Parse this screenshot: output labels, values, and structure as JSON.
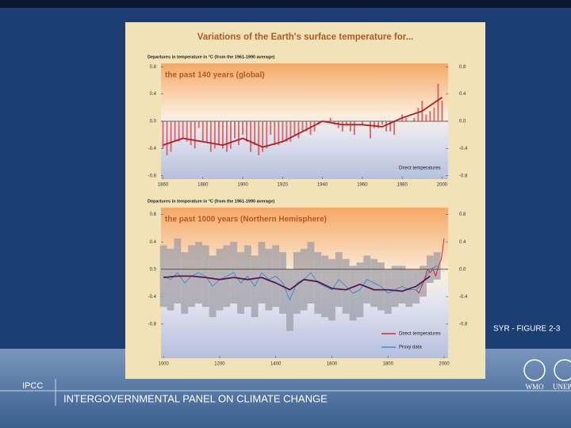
{
  "slide": {
    "caption": "SYR - FIGURE 2-3",
    "org_short": "IPCC",
    "org_full": "INTERGOVERNMENTAL PANEL ON CLIMATE CHANGE",
    "logos": [
      "WMO",
      "UNEP"
    ]
  },
  "figure_title": "Variations of the Earth's surface temperature for...",
  "chart_data": [
    {
      "type": "bar",
      "subtitle": "the past 140 years (global)",
      "y_label": "Departures in temperature in °C (from the 1961-1990 average)",
      "x": [
        1860,
        1862,
        1864,
        1866,
        1868,
        1870,
        1872,
        1874,
        1876,
        1878,
        1880,
        1882,
        1884,
        1886,
        1888,
        1890,
        1892,
        1894,
        1896,
        1898,
        1900,
        1902,
        1904,
        1906,
        1908,
        1910,
        1912,
        1914,
        1916,
        1918,
        1920,
        1922,
        1924,
        1926,
        1928,
        1930,
        1932,
        1934,
        1936,
        1938,
        1940,
        1942,
        1944,
        1946,
        1948,
        1950,
        1952,
        1954,
        1956,
        1958,
        1960,
        1962,
        1964,
        1966,
        1968,
        1970,
        1972,
        1974,
        1976,
        1978,
        1980,
        1982,
        1984,
        1986,
        1988,
        1990,
        1992,
        1994,
        1996,
        1998,
        2000
      ],
      "series": [
        {
          "name": "Direct temperatures",
          "color": "#d8504a",
          "values": [
            -0.4,
            -0.5,
            -0.45,
            -0.3,
            -0.3,
            -0.25,
            -0.3,
            -0.35,
            -0.4,
            -0.1,
            -0.3,
            -0.3,
            -0.45,
            -0.4,
            -0.35,
            -0.4,
            -0.45,
            -0.4,
            -0.25,
            -0.35,
            -0.2,
            -0.3,
            -0.45,
            -0.35,
            -0.5,
            -0.45,
            -0.4,
            -0.2,
            -0.35,
            -0.35,
            -0.3,
            -0.3,
            -0.3,
            -0.2,
            -0.25,
            -0.15,
            -0.15,
            -0.2,
            -0.15,
            -0.05,
            0,
            0,
            0.05,
            -0.05,
            -0.1,
            -0.15,
            -0.05,
            -0.15,
            -0.2,
            0,
            -0.05,
            0,
            -0.25,
            -0.1,
            -0.1,
            -0.05,
            -0.15,
            -0.15,
            -0.2,
            0,
            0.1,
            0.05,
            0,
            0.05,
            0.2,
            0.3,
            0.1,
            0.15,
            0.2,
            0.55,
            0.3
          ]
        }
      ],
      "smoothed": {
        "color": "#b02020",
        "x": [
          1860,
          1870,
          1880,
          1890,
          1900,
          1910,
          1920,
          1930,
          1940,
          1950,
          1960,
          1970,
          1980,
          1990,
          2000
        ],
        "values": [
          -0.35,
          -0.25,
          -0.3,
          -0.35,
          -0.25,
          -0.38,
          -0.3,
          -0.15,
          0,
          -0.05,
          -0.05,
          -0.08,
          0.05,
          0.15,
          0.35
        ]
      },
      "xlim": [
        1859,
        2003
      ],
      "xticks": [
        1860,
        1880,
        1900,
        1920,
        1940,
        1960,
        1980,
        2000
      ],
      "ylim": [
        -0.85,
        0.85
      ],
      "yticks": [
        0.8,
        0.4,
        {
          "value": 0,
          "label": "0.0"
        },
        -0.4,
        -0.8
      ],
      "legend": "lower right"
    },
    {
      "type": "line",
      "subtitle": "the past 1000 years (Northern Hemisphere)",
      "y_label": "Departures in temperature in °C (from the 1961-1990 average)",
      "series": [
        {
          "name": "Direct temperatures",
          "color": "#d8283a",
          "x": [
            1900,
            1910,
            1920,
            1930,
            1940,
            1950,
            1960,
            1970,
            1980,
            1990,
            2000
          ],
          "values": [
            -0.3,
            -0.35,
            -0.25,
            -0.15,
            0,
            -0.05,
            0,
            -0.1,
            0.05,
            0.15,
            0.45
          ]
        },
        {
          "name": "Proxy data",
          "color": "#3a8fd0",
          "x": [
            1000,
            1025,
            1050,
            1075,
            1100,
            1125,
            1150,
            1175,
            1200,
            1225,
            1250,
            1275,
            1300,
            1325,
            1350,
            1375,
            1400,
            1425,
            1450,
            1475,
            1500,
            1525,
            1550,
            1575,
            1600,
            1625,
            1650,
            1675,
            1700,
            1725,
            1750,
            1775,
            1800,
            1825,
            1850,
            1875,
            1900,
            1925,
            1950,
            1975
          ],
          "values": [
            -0.1,
            -0.15,
            -0.05,
            -0.2,
            -0.1,
            -0.05,
            -0.1,
            -0.25,
            -0.15,
            -0.1,
            -0.05,
            -0.2,
            -0.1,
            -0.25,
            -0.05,
            -0.15,
            -0.1,
            -0.2,
            -0.45,
            -0.2,
            -0.15,
            -0.05,
            -0.2,
            -0.25,
            -0.3,
            -0.15,
            -0.25,
            -0.35,
            -0.3,
            -0.15,
            -0.2,
            -0.25,
            -0.35,
            -0.3,
            -0.25,
            -0.3,
            -0.3,
            -0.2,
            0,
            0.05
          ]
        }
      ],
      "uncertainty": {
        "color": "#9a9aa4",
        "upper": [
          0.35,
          0.3,
          0.45,
          0.25,
          0.35,
          0.4,
          0.35,
          0.2,
          0.3,
          0.35,
          0.4,
          0.25,
          0.35,
          0.2,
          0.4,
          0.3,
          0.35,
          0.25,
          0,
          0.25,
          0.3,
          0.4,
          0.25,
          0.2,
          0.15,
          0.25,
          0.15,
          0.05,
          0.1,
          0.2,
          0.15,
          0.1,
          0,
          0.05,
          0.05,
          0,
          0,
          0.05,
          0.2,
          0.25
        ],
        "lower": [
          -0.55,
          -0.6,
          -0.5,
          -0.65,
          -0.55,
          -0.5,
          -0.55,
          -0.7,
          -0.6,
          -0.55,
          -0.5,
          -0.65,
          -0.55,
          -0.7,
          -0.5,
          -0.6,
          -0.55,
          -0.65,
          -0.9,
          -0.65,
          -0.6,
          -0.5,
          -0.65,
          -0.7,
          -0.75,
          -0.55,
          -0.65,
          -0.75,
          -0.7,
          -0.5,
          -0.55,
          -0.6,
          -0.65,
          -0.55,
          -0.5,
          -0.55,
          -0.5,
          -0.4,
          -0.2,
          -0.15
        ]
      },
      "smoothed": {
        "color": "#5a1850",
        "x": [
          1000,
          1050,
          1100,
          1150,
          1200,
          1250,
          1300,
          1350,
          1400,
          1450,
          1500,
          1550,
          1600,
          1650,
          1700,
          1750,
          1800,
          1850,
          1900,
          1950
        ],
        "values": [
          -0.12,
          -0.1,
          -0.1,
          -0.12,
          -0.15,
          -0.12,
          -0.15,
          -0.12,
          -0.2,
          -0.3,
          -0.15,
          -0.18,
          -0.28,
          -0.3,
          -0.22,
          -0.3,
          -0.3,
          -0.32,
          -0.25,
          -0.1
        ]
      },
      "xlim": [
        991,
        2014
      ],
      "xticks": [
        1000,
        1200,
        1400,
        1600,
        1800,
        2000
      ],
      "ylim": [
        -1.3,
        0.9
      ],
      "yticks": [
        0.8,
        0.4,
        {
          "value": 0,
          "label": "0.0"
        },
        -0.4,
        -0.8
      ],
      "legend": "lower right"
    }
  ]
}
